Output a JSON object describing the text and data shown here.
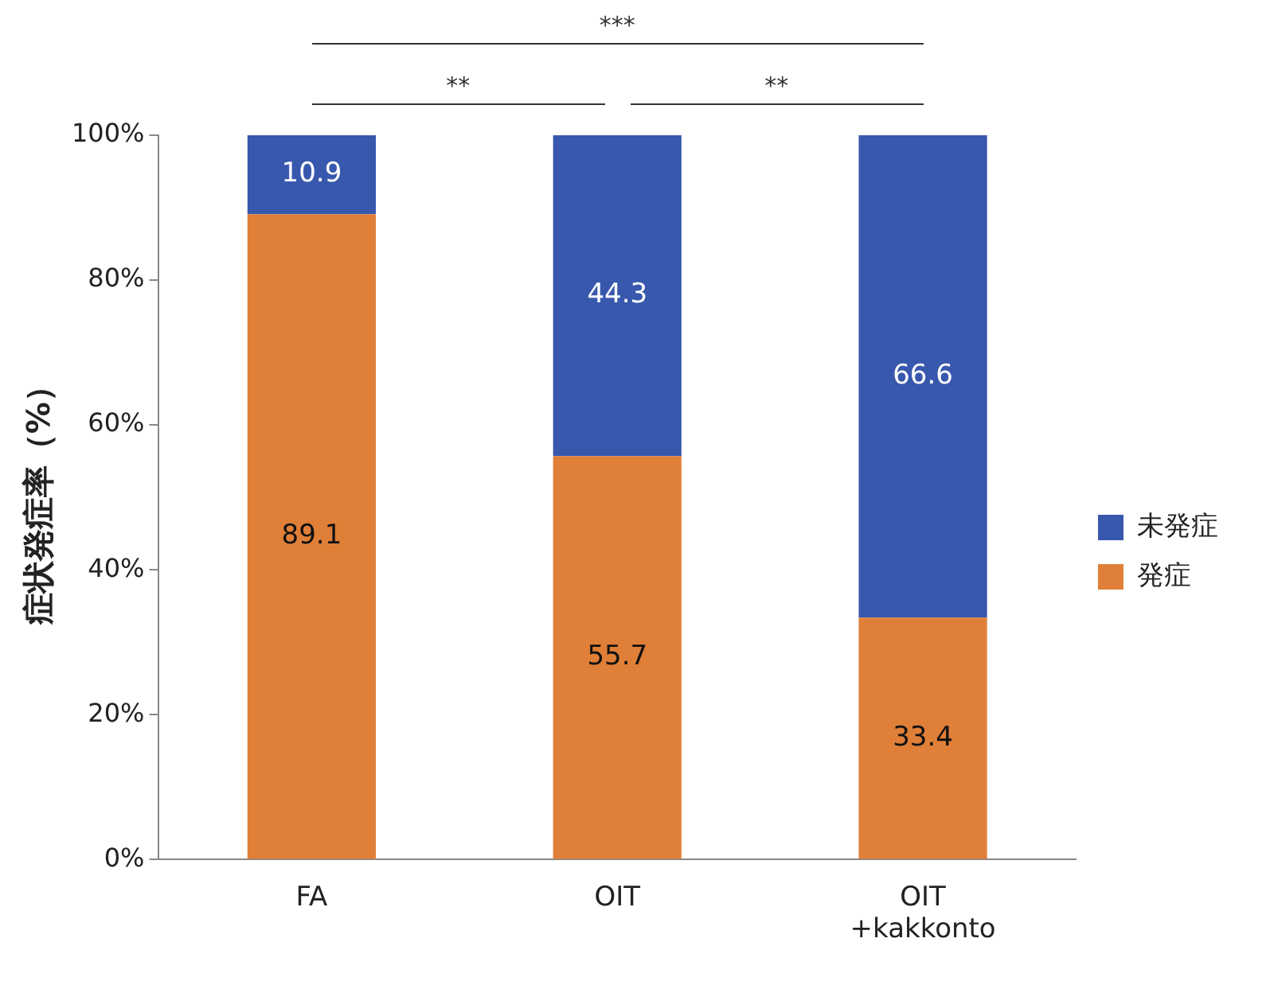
{
  "chart_data": {
    "type": "bar",
    "stacked": true,
    "ylabel": "症状発症率（%）",
    "categories": [
      "FA",
      "OIT",
      "OIT\n+kakkonto"
    ],
    "series": [
      {
        "name": "発症",
        "color": "#e07f38",
        "values": [
          89.1,
          55.7,
          33.4
        ]
      },
      {
        "name": "未発症",
        "color": "#3858ae",
        "values": [
          10.9,
          44.3,
          66.6
        ]
      }
    ],
    "ylim": [
      0,
      100
    ],
    "yticks": [
      {
        "value": 0,
        "label": "0%"
      },
      {
        "value": 20,
        "label": "20%"
      },
      {
        "value": 40,
        "label": "40%"
      },
      {
        "value": 60,
        "label": "60%"
      },
      {
        "value": 80,
        "label": "80%"
      },
      {
        "value": 100,
        "label": "100%"
      }
    ],
    "grid": false,
    "legend": "right",
    "data_labels": true,
    "annotations": [
      "**",
      "**",
      "***"
    ]
  }
}
